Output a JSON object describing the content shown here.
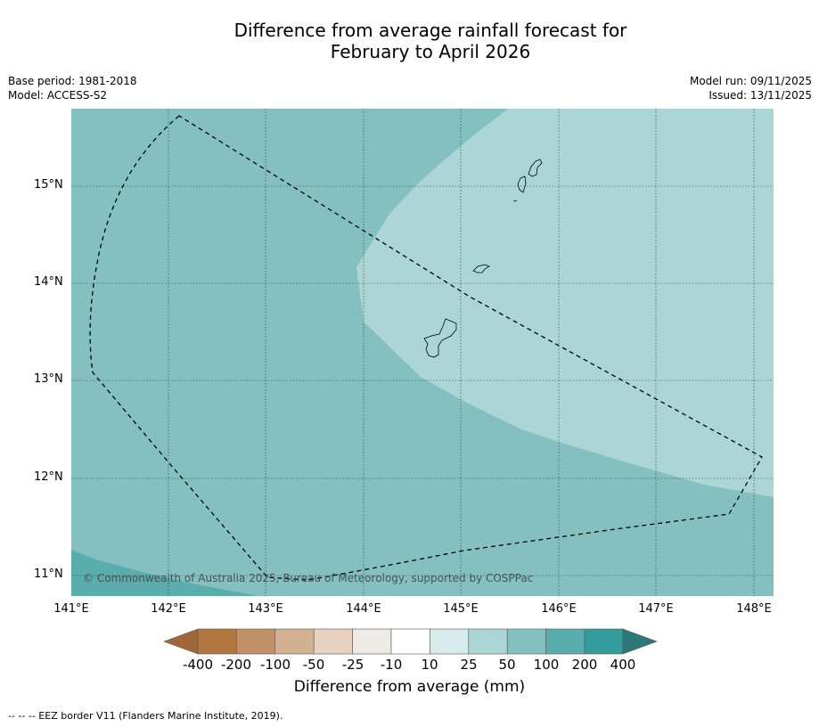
{
  "title": {
    "line1": "Difference from average rainfall forecast for",
    "line2": "February to April 2026"
  },
  "meta_left": {
    "base_period": "Base period: 1981-2018",
    "model": "Model: ACCESS-S2"
  },
  "meta_right": {
    "model_run": "Model run: 09/11/2025",
    "issued": "Issued: 13/11/2025"
  },
  "map": {
    "latitude_labels": [
      "15°N",
      "14°N",
      "13°N",
      "12°N",
      "11°N"
    ],
    "longitude_labels": [
      "141°E",
      "142°E",
      "143°E",
      "144°E",
      "145°E",
      "146°E",
      "147°E",
      "148°E"
    ],
    "copyright": "© Commonwealth of Australia 2025, Bureau of Meteorology, supported by COSPPac",
    "colors": {
      "band_10_25": "#d5ecea",
      "band_25_50": "#acd6d5",
      "band_50_100": "#85c0c0",
      "band_100_200": "#59adad",
      "land_outline": "#000000"
    }
  },
  "colorbar": {
    "ticks": [
      "-400",
      "-200",
      "-100",
      "-50",
      "-25",
      "-10",
      "10",
      "25",
      "50",
      "100",
      "200",
      "400"
    ],
    "colors": [
      "#a0683a",
      "#b27640",
      "#c09166",
      "#d3b293",
      "#e6d2bf",
      "#eeebe6",
      "#ffffff",
      "#d5ecea",
      "#acd6d5",
      "#85c0c0",
      "#59adad",
      "#339c9c",
      "#2c7878"
    ],
    "label": "Difference from average (mm)"
  },
  "footer": {
    "eez_note": "--  --  -- EEZ border V11 (Flanders Marine Institute, 2019)."
  }
}
